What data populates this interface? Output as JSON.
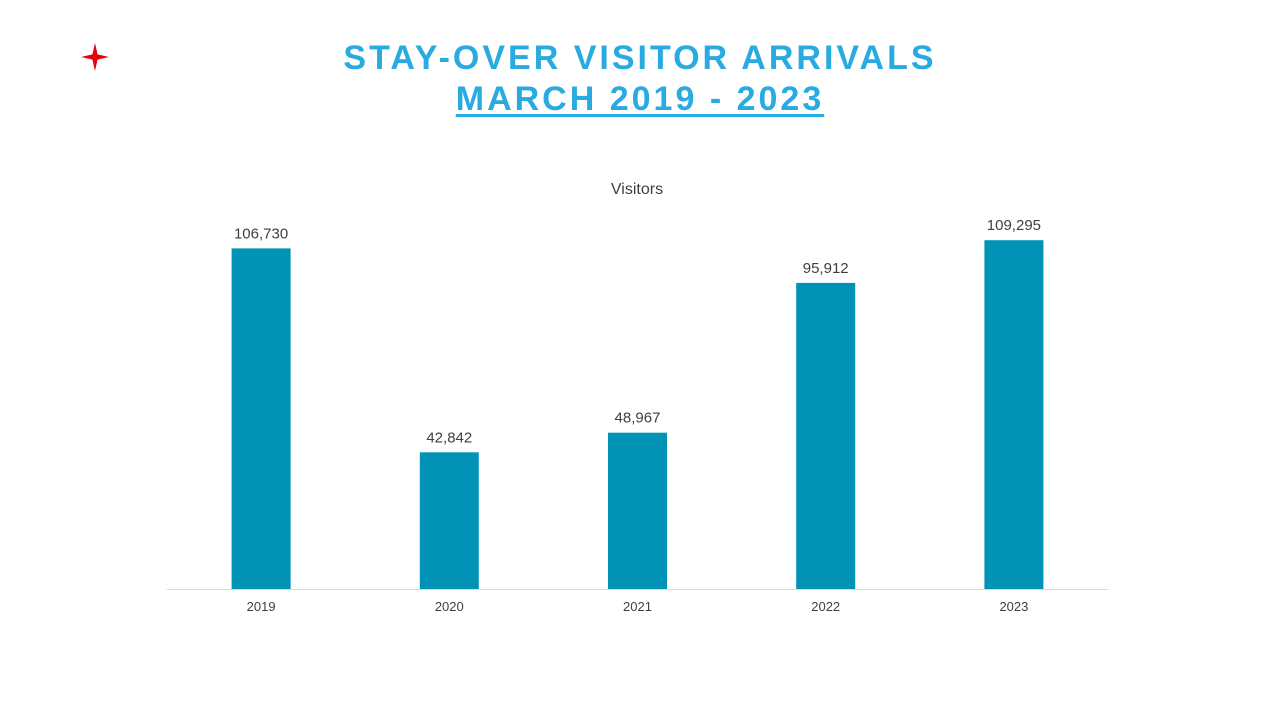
{
  "slide": {
    "title": "STAY-OVER VISITOR ARRIVALS",
    "subtitle": "MARCH 2019 - 2023",
    "title_color": "#29ABE2",
    "logo_icon": "red-four-point-star-icon",
    "logo_color": "#E3000F"
  },
  "chart_data": {
    "type": "bar",
    "title": "Visitors",
    "categories": [
      "2019",
      "2020",
      "2021",
      "2022",
      "2023"
    ],
    "values": [
      106730,
      42842,
      48967,
      95912,
      109295
    ],
    "value_labels": [
      "106,730",
      "42,842",
      "48,967",
      "95,912",
      "109,295"
    ],
    "ylim": [
      0,
      115000
    ],
    "grid": false,
    "legend": "none",
    "bar_color": "#0093B5",
    "axis_color": "#D9D9D9"
  }
}
